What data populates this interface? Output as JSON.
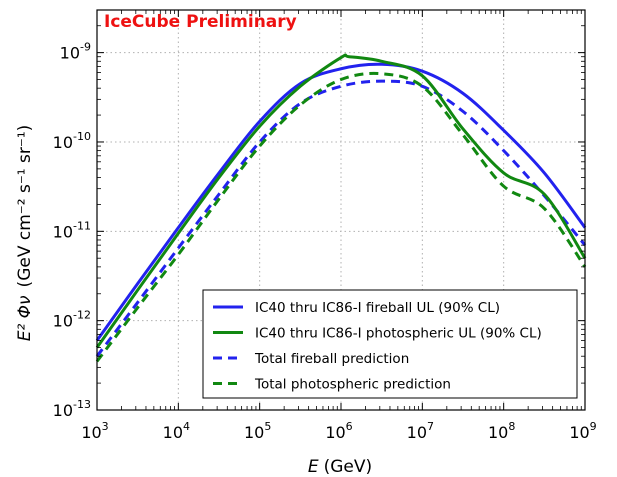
{
  "chart_data": {
    "type": "line",
    "title": "",
    "annotation": "IceCube Preliminary",
    "xlabel": "(GeV)",
    "xlabel_symbol": "E",
    "ylabel_symbol": "E² Φν",
    "ylabel_units": "(GeV cm⁻² s⁻¹ sr⁻¹)",
    "x_scale": "log",
    "y_scale": "log",
    "xlim": [
      1000,
      1000000000
    ],
    "ylim": [
      1e-13,
      3e-09
    ],
    "grid": true,
    "legend_position": "lower-right",
    "x_ticks": [
      {
        "value": 1000,
        "base": "10",
        "exp": "3"
      },
      {
        "value": 10000,
        "base": "10",
        "exp": "4"
      },
      {
        "value": 100000,
        "base": "10",
        "exp": "5"
      },
      {
        "value": 1000000,
        "base": "10",
        "exp": "6"
      },
      {
        "value": 10000000,
        "base": "10",
        "exp": "7"
      },
      {
        "value": 100000000,
        "base": "10",
        "exp": "8"
      },
      {
        "value": 1000000000,
        "base": "10",
        "exp": "9"
      }
    ],
    "y_ticks": [
      {
        "value": 1e-13,
        "base": "10",
        "exp": "-13"
      },
      {
        "value": 1e-12,
        "base": "10",
        "exp": "-12"
      },
      {
        "value": 1e-11,
        "base": "10",
        "exp": "-11"
      },
      {
        "value": 1e-10,
        "base": "10",
        "exp": "-10"
      },
      {
        "value": 1e-09,
        "base": "10",
        "exp": "-9"
      }
    ],
    "series": [
      {
        "name": "IC40 thru IC86-I fireball UL (90% CL)",
        "color": "#2222ee",
        "style": "solid",
        "x": [
          1000,
          3162,
          10000,
          31623,
          100000,
          316228,
          1000000,
          3162278,
          10000000,
          31622777,
          100000000,
          316227766,
          1000000000
        ],
        "y": [
          6e-13,
          2.6e-12,
          1.1e-11,
          4.5e-11,
          1.7e-10,
          4.5e-10,
          6.6e-10,
          7.4e-10,
          6.2e-10,
          3.5e-10,
          1.35e-10,
          4.5e-11,
          1.1e-11
        ]
      },
      {
        "name": "IC40 thru IC86-I photospheric UL (90% CL)",
        "color": "#118811",
        "style": "solid",
        "x": [
          1000,
          3162,
          10000,
          31623,
          100000,
          316228,
          1000000,
          1258925,
          3162278,
          10000000,
          31622777,
          100000000,
          316227766,
          1000000000
        ],
        "y": [
          5e-13,
          2.2e-12,
          9.5e-12,
          4e-11,
          1.5e-10,
          4.2e-10,
          8.8e-10,
          9e-10,
          8e-10,
          5.5e-10,
          1.4e-10,
          4.5e-11,
          2.6e-11,
          5e-12
        ]
      },
      {
        "name": "Total fireball prediction",
        "color": "#2222ee",
        "style": "dashed",
        "x": [
          1000,
          3162,
          10000,
          31623,
          100000,
          316228,
          1000000,
          3162278,
          10000000,
          31622777,
          100000000,
          316227766,
          1000000000
        ],
        "y": [
          4e-13,
          1.6e-12,
          6.5e-12,
          2.6e-11,
          1e-10,
          2.7e-10,
          4.2e-10,
          4.8e-10,
          4.2e-10,
          2.2e-10,
          8e-11,
          2.5e-11,
          7e-12
        ]
      },
      {
        "name": "Total photospheric prediction",
        "color": "#118811",
        "style": "dashed",
        "x": [
          1000,
          3162,
          10000,
          31623,
          100000,
          316228,
          1000000,
          3162278,
          10000000,
          31622777,
          100000000,
          316227766,
          1000000000
        ],
        "y": [
          3.5e-13,
          1.4e-12,
          5.5e-12,
          2.3e-11,
          9e-11,
          2.6e-10,
          5e-10,
          5.8e-10,
          4.2e-10,
          1.2e-10,
          3.2e-11,
          1.8e-11,
          4e-12
        ]
      }
    ]
  }
}
